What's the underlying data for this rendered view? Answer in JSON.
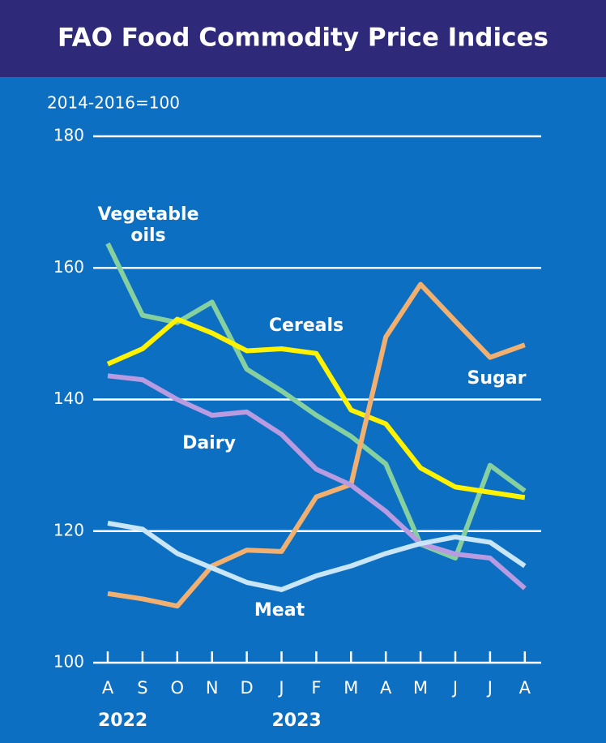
{
  "chart_data": {
    "type": "line",
    "title": "FAO Food Commodity Price Indices",
    "y_label": "2014-2016=100",
    "categories": [
      "A",
      "S",
      "O",
      "N",
      "D",
      "J",
      "F",
      "M",
      "A",
      "M",
      "J",
      "J",
      "A"
    ],
    "years": [
      "2022",
      "2023"
    ],
    "series": [
      {
        "name": "Vegetable oils",
        "color": "#86d0a0",
        "values": [
          163.7,
          152.8,
          151.7,
          154.8,
          144.6,
          141.3,
          137.6,
          134.4,
          130.2,
          118.0,
          115.9,
          130.0,
          126.1
        ]
      },
      {
        "name": "Cereals",
        "color": "#fff200",
        "values": [
          145.4,
          147.7,
          152.2,
          150.1,
          147.4,
          147.7,
          147.0,
          138.4,
          136.3,
          129.6,
          126.7,
          125.9,
          125.1
        ]
      },
      {
        "name": "Sugar",
        "color": "#f2b070",
        "values": [
          110.5,
          109.7,
          108.6,
          114.7,
          117.1,
          116.9,
          125.2,
          127.1,
          149.5,
          157.5,
          151.9,
          146.4,
          148.3
        ]
      },
      {
        "name": "Dairy",
        "color": "#b89be0",
        "values": [
          143.6,
          143.0,
          140.0,
          137.6,
          138.1,
          134.7,
          129.4,
          127.0,
          123.0,
          118.1,
          116.5,
          115.9,
          111.3
        ]
      },
      {
        "name": "Meat",
        "color": "#c8e6f8",
        "values": [
          121.2,
          120.3,
          116.6,
          114.4,
          112.2,
          111.1,
          113.2,
          114.7,
          116.6,
          118.1,
          119.1,
          118.3,
          114.7
        ]
      }
    ],
    "ylim": [
      100,
      180
    ],
    "yticks": [
      100,
      120,
      140,
      160,
      180
    ],
    "grid": true
  }
}
